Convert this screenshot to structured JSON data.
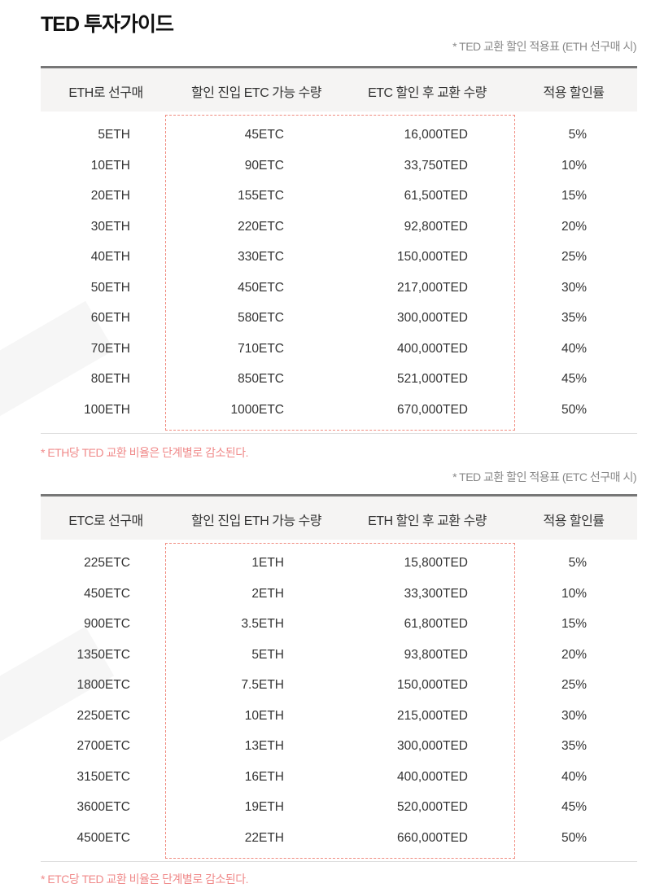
{
  "title": "TED 투자가이드",
  "tables": [
    {
      "caption": "* TED 교환 할인 적용표 (ETH 선구매 시)",
      "headers": [
        "ETH로 선구매",
        "할인 진입 ETC 가능 수량",
        "ETC 할인 후 교환 수량",
        "적용 할인률"
      ],
      "rows": [
        [
          "5ETH",
          "45ETC",
          "16,000TED",
          "5%"
        ],
        [
          "10ETH",
          "90ETC",
          "33,750TED",
          "10%"
        ],
        [
          "20ETH",
          "155ETC",
          "61,500TED",
          "15%"
        ],
        [
          "30ETH",
          "220ETC",
          "92,800TED",
          "20%"
        ],
        [
          "40ETH",
          "330ETC",
          "150,000TED",
          "25%"
        ],
        [
          "50ETH",
          "450ETC",
          "217,000TED",
          "30%"
        ],
        [
          "60ETH",
          "580ETC",
          "300,000TED",
          "35%"
        ],
        [
          "70ETH",
          "710ETC",
          "400,000TED",
          "40%"
        ],
        [
          "80ETH",
          "850ETC",
          "521,000TED",
          "45%"
        ],
        [
          "100ETH",
          "1000ETC",
          "670,000TED",
          "50%"
        ]
      ],
      "note": "* ETH당 TED 교환 비율은 단계별로 감소된다."
    },
    {
      "caption": "* TED 교환 할인 적용표 (ETC 선구매 시)",
      "headers": [
        "ETC로 선구매",
        "할인 진입 ETH 가능 수량",
        "ETH 할인 후 교환 수량",
        "적용 할인률"
      ],
      "rows": [
        [
          "225ETC",
          "1ETH",
          "15,800TED",
          "5%"
        ],
        [
          "450ETC",
          "2ETH",
          "33,300TED",
          "10%"
        ],
        [
          "900ETC",
          "3.5ETH",
          "61,800TED",
          "15%"
        ],
        [
          "1350ETC",
          "5ETH",
          "93,800TED",
          "20%"
        ],
        [
          "1800ETC",
          "7.5ETH",
          "150,000TED",
          "25%"
        ],
        [
          "2250ETC",
          "10ETH",
          "215,000TED",
          "30%"
        ],
        [
          "2700ETC",
          "13ETH",
          "300,000TED",
          "35%"
        ],
        [
          "3150ETC",
          "16ETH",
          "400,000TED",
          "40%"
        ],
        [
          "3600ETC",
          "19ETH",
          "520,000TED",
          "45%"
        ],
        [
          "4500ETC",
          "22ETH",
          "660,000TED",
          "50%"
        ]
      ],
      "note": "* ETC당 TED 교환 비율은 단계별로 감소된다."
    }
  ]
}
